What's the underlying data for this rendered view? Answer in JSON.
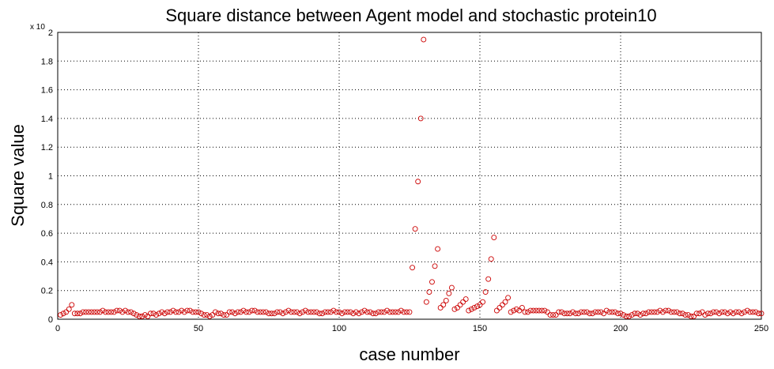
{
  "chart_data": {
    "type": "scatter",
    "title": "Square distance between Agent model and stochastic protein10",
    "xlabel": "case number",
    "ylabel": "Square value",
    "y_multiplier": "x 10",
    "xlim": [
      0,
      250
    ],
    "xticks": [
      0,
      50,
      100,
      150,
      200,
      250
    ],
    "ylim": [
      0,
      2
    ],
    "yticks": [
      0,
      0.2,
      0.4,
      0.6,
      0.8,
      1,
      1.2,
      1.4,
      1.6,
      1.8,
      2
    ],
    "grid": true,
    "series": [
      {
        "color": "#cc0000",
        "x": [
          1,
          2,
          3,
          4,
          5,
          6,
          7,
          8,
          9,
          10,
          11,
          12,
          13,
          14,
          15,
          16,
          17,
          18,
          19,
          20,
          21,
          22,
          23,
          24,
          25,
          26,
          27,
          28,
          29,
          30,
          31,
          32,
          33,
          34,
          35,
          36,
          37,
          38,
          39,
          40,
          41,
          42,
          43,
          44,
          45,
          46,
          47,
          48,
          49,
          50,
          51,
          52,
          53,
          54,
          55,
          56,
          57,
          58,
          59,
          60,
          61,
          62,
          63,
          64,
          65,
          66,
          67,
          68,
          69,
          70,
          71,
          72,
          73,
          74,
          75,
          76,
          77,
          78,
          79,
          80,
          81,
          82,
          83,
          84,
          85,
          86,
          87,
          88,
          89,
          90,
          91,
          92,
          93,
          94,
          95,
          96,
          97,
          98,
          99,
          100,
          101,
          102,
          103,
          104,
          105,
          106,
          107,
          108,
          109,
          110,
          111,
          112,
          113,
          114,
          115,
          116,
          117,
          118,
          119,
          120,
          121,
          122,
          123,
          124,
          125,
          126,
          127,
          128,
          129,
          130,
          131,
          132,
          133,
          134,
          135,
          136,
          137,
          138,
          139,
          140,
          141,
          142,
          143,
          144,
          145,
          146,
          147,
          148,
          149,
          150,
          151,
          152,
          153,
          154,
          155,
          156,
          157,
          158,
          159,
          160,
          161,
          162,
          163,
          164,
          165,
          166,
          167,
          168,
          169,
          170,
          171,
          172,
          173,
          174,
          175,
          176,
          177,
          178,
          179,
          180,
          181,
          182,
          183,
          184,
          185,
          186,
          187,
          188,
          189,
          190,
          191,
          192,
          193,
          194,
          195,
          196,
          197,
          198,
          199,
          200,
          201,
          202,
          203,
          204,
          205,
          206,
          207,
          208,
          209,
          210,
          211,
          212,
          213,
          214,
          215,
          216,
          217,
          218,
          219,
          220,
          221,
          222,
          223,
          224,
          225,
          226,
          227,
          228,
          229,
          230,
          231,
          232,
          233,
          234,
          235,
          236,
          237,
          238,
          239,
          240,
          241,
          242,
          243,
          244,
          245,
          246,
          247,
          248,
          249,
          250
        ],
        "values": [
          0.03,
          0.04,
          0.05,
          0.07,
          0.1,
          0.04,
          0.04,
          0.04,
          0.05,
          0.05,
          0.05,
          0.05,
          0.05,
          0.05,
          0.05,
          0.06,
          0.05,
          0.05,
          0.05,
          0.05,
          0.06,
          0.06,
          0.05,
          0.06,
          0.05,
          0.05,
          0.04,
          0.03,
          0.02,
          0.02,
          0.03,
          0.02,
          0.04,
          0.04,
          0.03,
          0.04,
          0.05,
          0.04,
          0.05,
          0.05,
          0.06,
          0.05,
          0.05,
          0.06,
          0.05,
          0.06,
          0.06,
          0.05,
          0.05,
          0.05,
          0.04,
          0.03,
          0.03,
          0.02,
          0.03,
          0.05,
          0.04,
          0.04,
          0.03,
          0.03,
          0.05,
          0.05,
          0.04,
          0.05,
          0.05,
          0.06,
          0.05,
          0.05,
          0.06,
          0.06,
          0.05,
          0.05,
          0.05,
          0.05,
          0.04,
          0.04,
          0.04,
          0.05,
          0.05,
          0.04,
          0.05,
          0.06,
          0.05,
          0.05,
          0.05,
          0.04,
          0.05,
          0.06,
          0.05,
          0.05,
          0.05,
          0.05,
          0.04,
          0.04,
          0.05,
          0.05,
          0.05,
          0.06,
          0.05,
          0.05,
          0.04,
          0.05,
          0.05,
          0.05,
          0.04,
          0.05,
          0.04,
          0.05,
          0.06,
          0.05,
          0.05,
          0.04,
          0.04,
          0.05,
          0.05,
          0.05,
          0.06,
          0.05,
          0.05,
          0.05,
          0.05,
          0.06,
          0.05,
          0.05,
          0.05,
          0.36,
          0.63,
          0.96,
          1.4,
          1.95,
          0.12,
          0.19,
          0.26,
          0.37,
          0.49,
          0.08,
          0.1,
          0.13,
          0.18,
          0.22,
          0.07,
          0.08,
          0.1,
          0.12,
          0.14,
          0.06,
          0.07,
          0.08,
          0.09,
          0.1,
          0.12,
          0.19,
          0.28,
          0.42,
          0.57,
          0.06,
          0.08,
          0.1,
          0.12,
          0.15,
          0.05,
          0.06,
          0.07,
          0.06,
          0.08,
          0.05,
          0.05,
          0.06,
          0.06,
          0.06,
          0.06,
          0.06,
          0.06,
          0.05,
          0.03,
          0.03,
          0.03,
          0.05,
          0.05,
          0.04,
          0.04,
          0.04,
          0.05,
          0.04,
          0.04,
          0.05,
          0.05,
          0.05,
          0.04,
          0.04,
          0.05,
          0.05,
          0.05,
          0.04,
          0.06,
          0.05,
          0.05,
          0.05,
          0.04,
          0.04,
          0.03,
          0.02,
          0.02,
          0.03,
          0.04,
          0.04,
          0.03,
          0.04,
          0.04,
          0.05,
          0.05,
          0.05,
          0.05,
          0.06,
          0.05,
          0.06,
          0.06,
          0.05,
          0.05,
          0.05,
          0.04,
          0.04,
          0.03,
          0.03,
          0.02,
          0.02,
          0.04,
          0.04,
          0.05,
          0.03,
          0.04,
          0.04,
          0.05,
          0.05,
          0.04,
          0.05,
          0.05,
          0.04,
          0.05,
          0.04,
          0.05,
          0.05,
          0.04,
          0.05,
          0.06,
          0.05,
          0.05,
          0.05,
          0.04,
          0.04
        ]
      }
    ]
  }
}
